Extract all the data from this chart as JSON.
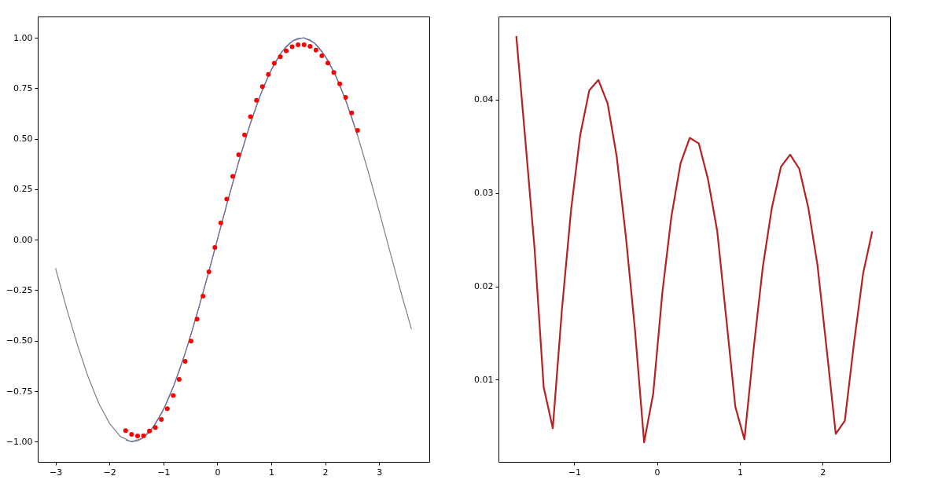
{
  "chart_data": [
    {
      "type": "line",
      "xlim": [
        -3.33,
        3.93
      ],
      "ylim": [
        -1.1,
        1.105
      ],
      "xticks": [
        {
          "value": -3,
          "label": "−3"
        },
        {
          "value": -2,
          "label": "−2"
        },
        {
          "value": -1,
          "label": "−1"
        },
        {
          "value": 0,
          "label": "0"
        },
        {
          "value": 1,
          "label": "1"
        },
        {
          "value": 2,
          "label": "2"
        },
        {
          "value": 3,
          "label": "3"
        }
      ],
      "yticks": [
        {
          "value": -1,
          "label": "−1.00"
        },
        {
          "value": -0.75,
          "label": "−0.75"
        },
        {
          "value": -0.5,
          "label": "−0.50"
        },
        {
          "value": -0.25,
          "label": "−0.25"
        },
        {
          "value": 0,
          "label": "0.00"
        },
        {
          "value": 0.25,
          "label": "0.25"
        },
        {
          "value": 0.5,
          "label": "0.50"
        },
        {
          "value": 0.75,
          "label": "0.75"
        },
        {
          "value": 1,
          "label": "1.00"
        }
      ],
      "grid": false,
      "series": [
        {
          "type": "line",
          "color": "#808080",
          "x": [
            -3.0,
            -2.8,
            -2.6,
            -2.4,
            -2.2,
            -2.0,
            -1.8,
            -1.6,
            -1.4,
            -1.2,
            -1.0,
            -0.8,
            -0.6,
            -0.4,
            -0.2,
            0.0,
            0.2,
            0.4,
            0.6,
            0.8,
            1.0,
            1.2,
            1.4,
            1.6,
            1.8,
            2.0,
            2.2,
            2.4,
            2.6,
            2.8,
            3.0,
            3.2,
            3.4,
            3.6
          ],
          "values": [
            -0.141,
            -0.335,
            -0.516,
            -0.676,
            -0.809,
            -0.909,
            -0.974,
            -1.0,
            -0.985,
            -0.932,
            -0.841,
            -0.717,
            -0.565,
            -0.389,
            -0.199,
            0.0,
            0.199,
            0.389,
            0.565,
            0.717,
            0.841,
            0.932,
            0.985,
            1.0,
            0.974,
            0.909,
            0.809,
            0.676,
            0.516,
            0.335,
            0.141,
            -0.058,
            -0.256,
            -0.443
          ]
        },
        {
          "type": "line",
          "color": "#6a6fa8",
          "x": [
            -1.7,
            -1.59,
            -1.479,
            -1.369,
            -1.259,
            -1.149,
            -1.038,
            -0.928,
            -0.818,
            -0.708,
            -0.597,
            -0.487,
            -0.377,
            -0.267,
            -0.156,
            -0.046,
            0.064,
            0.174,
            0.285,
            0.395,
            0.505,
            0.615,
            0.726,
            0.836,
            0.946,
            1.056,
            1.167,
            1.277,
            1.387,
            1.497,
            1.608,
            1.718,
            1.828,
            1.938,
            2.049,
            2.159,
            2.269,
            2.379,
            2.49,
            2.6
          ],
          "values": [
            -0.992,
            -1.0,
            -0.996,
            -0.98,
            -0.952,
            -0.912,
            -0.862,
            -0.801,
            -0.73,
            -0.65,
            -0.562,
            -0.468,
            -0.368,
            -0.264,
            -0.156,
            -0.046,
            0.064,
            0.174,
            0.281,
            0.385,
            0.484,
            0.577,
            0.664,
            0.742,
            0.811,
            0.87,
            0.919,
            0.957,
            0.983,
            0.997,
            0.999,
            0.989,
            0.967,
            0.933,
            0.888,
            0.832,
            0.766,
            0.69,
            0.607,
            0.516
          ]
        },
        {
          "type": "scatter",
          "color": "#ff0000",
          "marker": "circle",
          "x": [
            -1.7,
            -1.59,
            -1.479,
            -1.369,
            -1.259,
            -1.149,
            -1.038,
            -0.928,
            -0.818,
            -0.708,
            -0.597,
            -0.487,
            -0.377,
            -0.267,
            -0.156,
            -0.046,
            0.064,
            0.174,
            0.285,
            0.395,
            0.505,
            0.615,
            0.726,
            0.836,
            0.946,
            1.056,
            1.167,
            1.277,
            1.387,
            1.497,
            1.608,
            1.718,
            1.828,
            1.938,
            2.049,
            2.159,
            2.269,
            2.379,
            2.49,
            2.6
          ],
          "values": [
            -0.945,
            -0.964,
            -0.972,
            -0.971,
            -0.947,
            -0.93,
            -0.89,
            -0.837,
            -0.771,
            -0.692,
            -0.602,
            -0.502,
            -0.393,
            -0.279,
            -0.159,
            -0.038,
            0.083,
            0.201,
            0.314,
            0.421,
            0.519,
            0.609,
            0.69,
            0.758,
            0.818,
            0.874,
            0.906,
            0.935,
            0.955,
            0.965,
            0.965,
            0.957,
            0.939,
            0.911,
            0.875,
            0.828,
            0.772,
            0.704,
            0.628,
            0.541
          ]
        }
      ]
    },
    {
      "type": "line",
      "xlim": [
        -1.915,
        2.815
      ],
      "ylim": [
        0.0012,
        0.0489
      ],
      "xticks": [
        {
          "value": -1,
          "label": "−1"
        },
        0,
        1,
        2
      ],
      "yticks": [
        0.01,
        0.02,
        0.03,
        0.04
      ],
      "grid": false,
      "series": [
        {
          "type": "line",
          "color": "#b22222",
          "x": [
            -1.7,
            -1.59,
            -1.479,
            -1.369,
            -1.259,
            -1.149,
            -1.038,
            -0.928,
            -0.818,
            -0.708,
            -0.597,
            -0.487,
            -0.377,
            -0.267,
            -0.156,
            -0.046,
            0.064,
            0.174,
            0.285,
            0.395,
            0.505,
            0.615,
            0.726,
            0.836,
            0.946,
            1.056,
            1.167,
            1.277,
            1.387,
            1.497,
            1.608,
            1.718,
            1.828,
            1.938,
            2.049,
            2.159,
            2.269,
            2.379,
            2.49,
            2.6
          ],
          "values": [
            0.0468,
            0.0356,
            0.024,
            0.0092,
            0.0048,
            0.0175,
            0.0282,
            0.0362,
            0.041,
            0.0421,
            0.0396,
            0.0339,
            0.0254,
            0.0154,
            0.0033,
            0.0085,
            0.0193,
            0.0275,
            0.0332,
            0.0359,
            0.0353,
            0.0315,
            0.026,
            0.0166,
            0.0071,
            0.0036,
            0.0133,
            0.022,
            0.0284,
            0.0328,
            0.0341,
            0.0326,
            0.0284,
            0.0223,
            0.0133,
            0.0042,
            0.0056,
            0.0139,
            0.0214,
            0.0259
          ]
        }
      ]
    }
  ]
}
